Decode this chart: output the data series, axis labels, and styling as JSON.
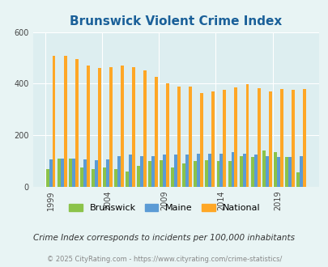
{
  "title": "Brunswick Violent Crime Index",
  "years": [
    1999,
    2000,
    2001,
    2002,
    2003,
    2004,
    2005,
    2006,
    2007,
    2008,
    2009,
    2010,
    2011,
    2012,
    2013,
    2014,
    2015,
    2016,
    2017,
    2018,
    2019,
    2020,
    2021
  ],
  "brunswick": [
    68,
    110,
    110,
    75,
    70,
    75,
    68,
    60,
    80,
    100,
    105,
    75,
    90,
    100,
    105,
    100,
    100,
    120,
    115,
    140,
    135,
    115,
    55
  ],
  "maine": [
    108,
    110,
    110,
    108,
    105,
    108,
    120,
    125,
    120,
    120,
    125,
    125,
    125,
    128,
    130,
    130,
    135,
    130,
    125,
    120,
    115,
    115,
    118
  ],
  "national": [
    507,
    507,
    495,
    470,
    460,
    465,
    470,
    465,
    450,
    425,
    400,
    388,
    390,
    365,
    370,
    375,
    385,
    397,
    383,
    370,
    380,
    375,
    378
  ],
  "brunswick_color": "#8bc34a",
  "maine_color": "#5b9bd5",
  "national_color": "#ffa726",
  "bg_color": "#e8f4f4",
  "plot_bg": "#ddeef0",
  "ylim": [
    0,
    600
  ],
  "yticks": [
    0,
    200,
    400,
    600
  ],
  "xtick_years": [
    1999,
    2004,
    2009,
    2014,
    2019
  ],
  "subtitle": "Crime Index corresponds to incidents per 100,000 inhabitants",
  "footer": "© 2025 CityRating.com - https://www.cityrating.com/crime-statistics/",
  "title_color": "#1a6099",
  "subtitle_color": "#333333",
  "footer_color": "#888888"
}
